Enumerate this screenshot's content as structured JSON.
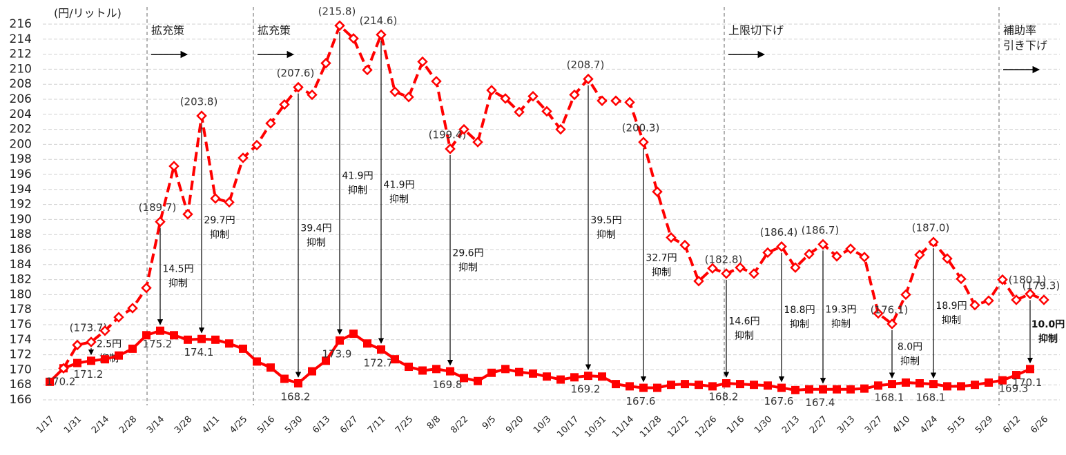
{
  "chart_data": {
    "type": "line",
    "y_label": "(円/リットル)",
    "ylim": [
      166,
      216
    ],
    "yticks": [
      166,
      168,
      170,
      172,
      174,
      176,
      178,
      180,
      182,
      184,
      186,
      188,
      190,
      192,
      194,
      196,
      198,
      200,
      202,
      204,
      206,
      208,
      210,
      212,
      214,
      216
    ],
    "grid": true,
    "categories": [
      "1/17",
      null,
      "1/31",
      null,
      "2/14",
      null,
      "2/28",
      null,
      "3/14",
      null,
      "3/28",
      null,
      "4/11",
      null,
      "4/25",
      null,
      "5/16",
      null,
      "5/30",
      null,
      "6/13",
      null,
      "6/27",
      null,
      "7/11",
      null,
      "7/25",
      null,
      "8/8",
      null,
      "8/22",
      null,
      "9/5",
      null,
      "9/20",
      null,
      "10/3",
      null,
      "10/17",
      null,
      "10/31",
      null,
      "11/14",
      null,
      "11/28",
      null,
      "12/12",
      null,
      "12/26",
      null,
      "1/16",
      null,
      "1/30",
      null,
      "2/13",
      null,
      "2/27",
      null,
      "3/13",
      null,
      "3/27",
      null,
      "4/10",
      null,
      "4/24",
      null,
      "5/15",
      null,
      "5/29",
      null,
      "6/12",
      null,
      "6/26"
    ],
    "series": [
      {
        "color": "#ff0000",
        "style": "solid",
        "values": [
          168.4,
          170.2,
          170.9,
          171.2,
          171.4,
          171.9,
          172.8,
          174.6,
          175.2,
          174.6,
          174.0,
          174.1,
          174.0,
          173.5,
          172.8,
          171.1,
          170.3,
          168.8,
          168.2,
          169.8,
          171.2,
          173.9,
          174.8,
          173.5,
          172.7,
          171.4,
          170.4,
          169.9,
          170.1,
          169.8,
          168.9,
          168.5,
          169.6,
          170.1,
          169.7,
          169.5,
          169.1,
          168.7,
          169.0,
          169.2,
          169.1,
          168.1,
          167.8,
          167.6,
          167.6,
          168.0,
          168.1,
          168.0,
          167.8,
          168.2,
          168.1,
          168.0,
          167.9,
          167.6,
          167.3,
          167.4,
          167.4,
          167.4,
          167.4,
          167.5,
          167.9,
          168.1,
          168.3,
          168.2,
          168.1,
          167.8,
          167.8,
          168.0,
          168.3,
          168.6,
          169.3,
          170.1,
          null
        ],
        "value_labels": [
          null,
          "170.2",
          null,
          "171.2",
          null,
          null,
          null,
          null,
          "175.2",
          null,
          null,
          "174.1",
          null,
          null,
          null,
          null,
          null,
          null,
          "168.2",
          null,
          null,
          "173.9",
          null,
          null,
          "172.7",
          null,
          null,
          null,
          null,
          "169.8",
          null,
          null,
          null,
          null,
          null,
          null,
          null,
          null,
          null,
          "169.2",
          null,
          null,
          null,
          "167.6",
          null,
          null,
          null,
          null,
          null,
          "168.2",
          null,
          null,
          null,
          "167.6",
          null,
          null,
          "167.4",
          null,
          null,
          null,
          null,
          "168.1",
          null,
          null,
          "168.1",
          null,
          null,
          null,
          null,
          null,
          "169.3",
          "170.1",
          null
        ]
      },
      {
        "color": "#ff0000",
        "style": "dashed",
        "values": [
          null,
          170.2,
          173.3,
          173.7,
          175.2,
          177.0,
          178.2,
          180.9,
          189.7,
          197.1,
          190.7,
          203.8,
          192.8,
          192.3,
          198.2,
          199.9,
          202.8,
          205.3,
          207.6,
          206.6,
          210.8,
          215.8,
          214.1,
          209.9,
          214.6,
          207.0,
          206.3,
          211.0,
          208.4,
          199.4,
          202.0,
          200.3,
          207.2,
          206.1,
          204.3,
          206.4,
          204.4,
          202.0,
          206.6,
          208.7,
          205.8,
          205.8,
          205.6,
          200.3,
          193.7,
          187.6,
          186.6,
          181.8,
          183.5,
          182.8,
          183.6,
          182.8,
          185.6,
          186.4,
          183.6,
          185.4,
          186.7,
          185.1,
          186.1,
          185.0,
          177.5,
          176.1,
          180.0,
          185.3,
          187.0,
          184.8,
          182.1,
          178.6,
          179.2,
          182.0,
          179.3,
          180.1,
          179.3
        ],
        "value_labels": [
          null,
          null,
          null,
          "(173.7)",
          null,
          null,
          null,
          null,
          "(189.7)",
          null,
          null,
          "(203.8)",
          null,
          null,
          null,
          null,
          null,
          null,
          "(207.6)",
          null,
          null,
          "(215.8)",
          null,
          null,
          "(214.6)",
          null,
          null,
          null,
          null,
          "(199.4)",
          null,
          null,
          null,
          null,
          null,
          null,
          null,
          null,
          null,
          "(208.7)",
          null,
          null,
          null,
          "(200.3)",
          null,
          null,
          null,
          null,
          null,
          "(182.8)",
          null,
          null,
          null,
          "(186.4)",
          null,
          null,
          "(186.7)",
          null,
          null,
          null,
          null,
          "(176.1)",
          null,
          null,
          "(187.0)",
          null,
          null,
          null,
          null,
          null,
          null,
          "(180.1)",
          "(179.3)"
        ]
      }
    ],
    "reductions": [
      null,
      null,
      null,
      [
        "2.5円",
        "抑制"
      ],
      null,
      null,
      null,
      null,
      [
        "14.5円",
        "抑制"
      ],
      null,
      null,
      [
        "29.7円",
        "抑制"
      ],
      null,
      null,
      null,
      null,
      null,
      null,
      [
        "39.4円",
        "抑制"
      ],
      null,
      null,
      [
        "41.9円",
        "抑制"
      ],
      null,
      null,
      [
        "41.9円",
        "抑制"
      ],
      null,
      null,
      null,
      null,
      [
        "29.6円",
        "抑制"
      ],
      null,
      null,
      null,
      null,
      null,
      null,
      null,
      null,
      null,
      [
        "39.5円",
        "抑制"
      ],
      null,
      null,
      null,
      [
        "32.7円",
        "抑制"
      ],
      null,
      null,
      null,
      null,
      null,
      [
        "14.6円",
        "抑制"
      ],
      null,
      null,
      null,
      [
        "18.8円",
        "抑制"
      ],
      null,
      null,
      [
        "19.3円",
        "抑制"
      ],
      null,
      null,
      null,
      null,
      [
        "8.0円",
        "抑制"
      ],
      null,
      null,
      [
        "18.9円",
        "抑制"
      ],
      null,
      null,
      null,
      null,
      null,
      null,
      [
        "10.0円",
        "抑制"
      ],
      null
    ],
    "phases": [
      {
        "lines": [
          "拡充策"
        ]
      },
      {
        "lines": [
          "拡充策"
        ]
      },
      {
        "lines": [
          "上限切下げ"
        ]
      },
      {
        "lines": [
          "補助率",
          "引き下げ"
        ]
      }
    ]
  }
}
